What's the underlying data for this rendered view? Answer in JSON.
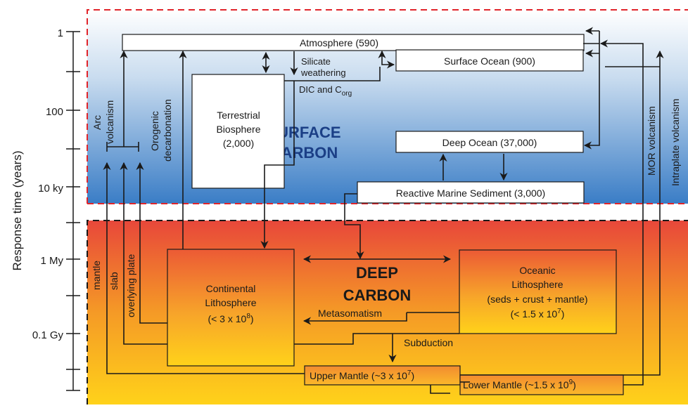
{
  "y_axis": {
    "label": "Response time (years)",
    "ticks": [
      "1",
      "100",
      "10 ky",
      "1 My",
      "0.1 Gy"
    ]
  },
  "regions": {
    "surface": {
      "line1": "SURFACE",
      "line2": "CARBON",
      "color_top": "#ffffff",
      "color_bottom": "#3a7dc6"
    },
    "deep": {
      "line1": "DEEP",
      "line2": "CARBON",
      "color_top": "#e8473a",
      "color_bottom": "#ffd21a"
    }
  },
  "boxes": {
    "atmosphere": "Atmosphere (590)",
    "surface_ocean": "Surface Ocean (900)",
    "terrestrial_biosphere": [
      "Terrestrial",
      "Biosphere",
      "(2,000)"
    ],
    "deep_ocean": "Deep Ocean (37,000)",
    "reactive_marine_sediment": "Reactive Marine Sediment (3,000)",
    "continental_lithosphere": {
      "line1": "Continental",
      "line2": "Lithosphere",
      "line3_prefix": "(< 3 x 10",
      "line3_exp": "8",
      "line3_suffix": ")"
    },
    "oceanic_lithosphere": {
      "line1": "Oceanic",
      "line2": "Lithosphere",
      "line3": "(seds + crust + mantle)",
      "line4_prefix": "(< 1.5 x 10",
      "line4_exp": "7",
      "line4_suffix": ")"
    },
    "upper_mantle": {
      "prefix": "Upper Mantle (~3 x 10",
      "exp": "7",
      "suffix": ")"
    },
    "lower_mantle": {
      "prefix": "Lower Mantle (~1.5 x 10",
      "exp": "9",
      "suffix": ")"
    }
  },
  "labels": {
    "arc_volcanism": [
      "Arc",
      "volcanism"
    ],
    "orogenic_decarbonation": [
      "Orogenic",
      "decarbonation"
    ],
    "silicate_weathering": [
      "Silicate",
      "weathering"
    ],
    "dic_corg": {
      "prefix": "DIC and C",
      "sub": "org"
    },
    "mor_volcanism": "MOR volcanism",
    "intraplate_volcanism": "Intraplate volcanism",
    "mantle": "mantle",
    "slab": "slab",
    "overlying_plate": "overlying plate",
    "metasomatism": "Metasomatism",
    "subduction": "Subduction"
  },
  "colors": {
    "line": "#1a1a1a",
    "dash": "#e0242a"
  }
}
